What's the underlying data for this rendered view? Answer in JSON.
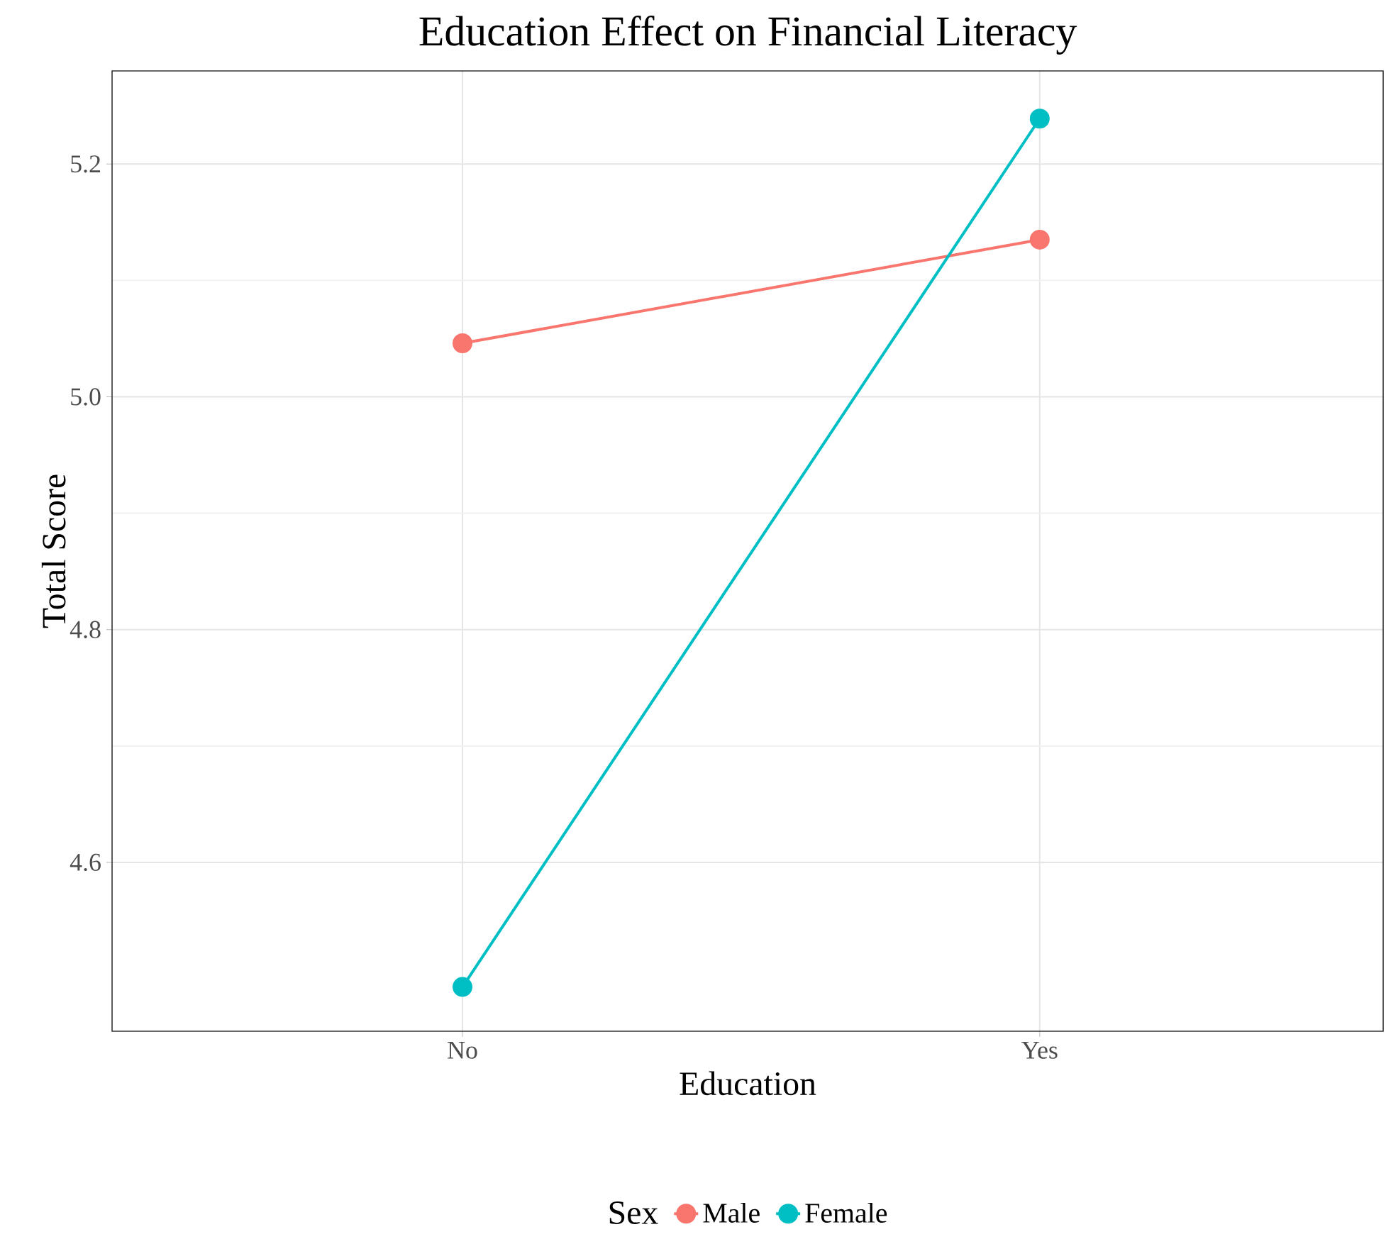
{
  "chart_data": {
    "type": "line",
    "title": "Education Effect on Financial Literacy",
    "xlabel": "Education",
    "ylabel": "Total Score",
    "legend_title": "Sex",
    "categories": [
      "No",
      "Yes"
    ],
    "series": [
      {
        "name": "Male",
        "color": "#f8766d",
        "values": [
          5.046,
          5.135
        ]
      },
      {
        "name": "Female",
        "color": "#00bfc4",
        "values": [
          4.493,
          5.239
        ]
      }
    ],
    "ylim": [
      4.455,
      5.28
    ],
    "yticks": [
      4.6,
      4.8,
      {
        "value": 5,
        "label": "5.0"
      },
      5.2
    ],
    "grid": true,
    "legend": "bottom",
    "marker": "circle",
    "line_style": "solid"
  }
}
